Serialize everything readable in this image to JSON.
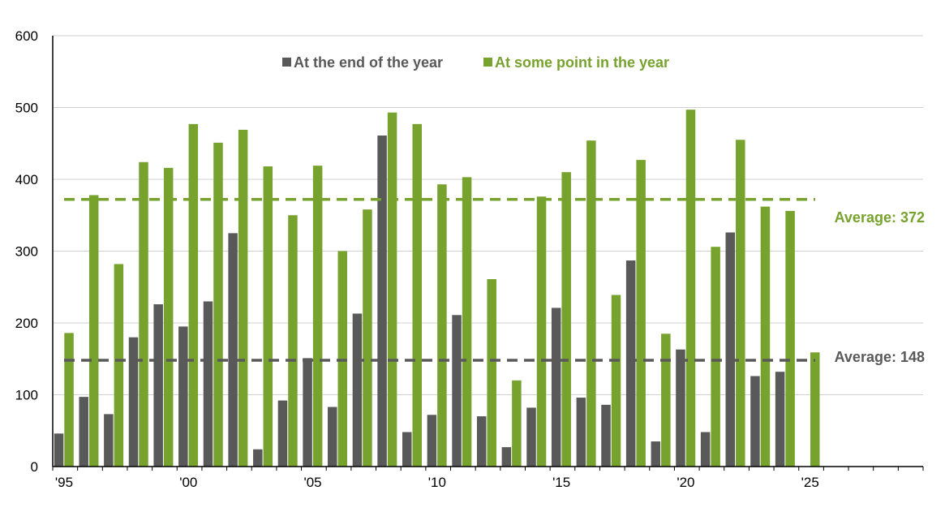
{
  "chart_data": {
    "type": "bar",
    "title": "",
    "xlabel": "",
    "ylabel": "",
    "ylim": [
      0,
      600
    ],
    "yticks": [
      0,
      100,
      200,
      300,
      400,
      500,
      600
    ],
    "xticks": [
      "'95",
      "'00",
      "'05",
      "'10",
      "'15",
      "'20",
      "'25"
    ],
    "xlim": [
      1995,
      2030
    ],
    "grid": true,
    "legend_position": "top-center",
    "categories": [
      1995,
      1996,
      1997,
      1998,
      1999,
      2000,
      2001,
      2002,
      2003,
      2004,
      2005,
      2006,
      2007,
      2008,
      2009,
      2010,
      2011,
      2012,
      2013,
      2014,
      2015,
      2016,
      2017,
      2018,
      2019,
      2020,
      2021,
      2022,
      2023,
      2024,
      2025
    ],
    "series": [
      {
        "name": "At the end of the year",
        "color": "#595959",
        "values": [
          46,
          97,
          73,
          180,
          226,
          195,
          230,
          325,
          24,
          92,
          151,
          83,
          213,
          461,
          48,
          72,
          211,
          70,
          27,
          82,
          221,
          96,
          86,
          287,
          35,
          163,
          48,
          326,
          126,
          132,
          null
        ]
      },
      {
        "name": "At some point in the year",
        "color": "#77a22d",
        "values": [
          186,
          378,
          282,
          424,
          416,
          477,
          451,
          469,
          418,
          350,
          419,
          300,
          358,
          493,
          477,
          393,
          403,
          261,
          120,
          376,
          410,
          454,
          239,
          427,
          185,
          497,
          306,
          455,
          362,
          356,
          159
        ]
      }
    ],
    "averages": [
      {
        "label": "Average: 372",
        "value": 372,
        "color": "#77a22d"
      },
      {
        "label": "Average: 148",
        "value": 148,
        "color": "#595959"
      }
    ]
  }
}
